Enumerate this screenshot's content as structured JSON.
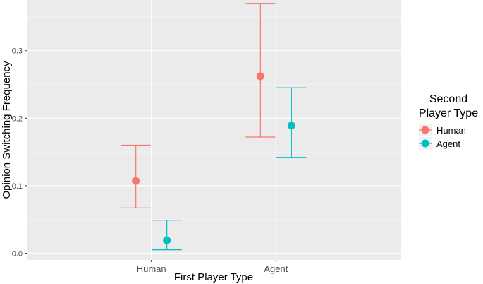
{
  "chart_data": {
    "type": "scatter",
    "subtype": "point-with-errorbars (dodged)",
    "xlabel": "First Player Type",
    "ylabel": "Opinion Switching Frequency",
    "categories": [
      "Human",
      "Agent"
    ],
    "ylim": [
      -0.01,
      0.375
    ],
    "yticks": [
      0.0,
      0.1,
      0.2,
      0.3
    ],
    "ytick_labels": [
      "0.0",
      "0.1",
      "0.2",
      "0.3"
    ],
    "grid": true,
    "background": "#ebebeb",
    "legend": {
      "title_lines": [
        "Second",
        "Player Type"
      ],
      "placement": "right"
    },
    "series": [
      {
        "name": "Human",
        "color": "#f8766d",
        "values": [
          0.107,
          0.262
        ],
        "lower": [
          0.067,
          0.172
        ],
        "upper": [
          0.16,
          0.37
        ]
      },
      {
        "name": "Agent",
        "color": "#00bfc4",
        "values": [
          0.019,
          0.189
        ],
        "lower": [
          0.005,
          0.142
        ],
        "upper": [
          0.049,
          0.245
        ]
      }
    ]
  }
}
